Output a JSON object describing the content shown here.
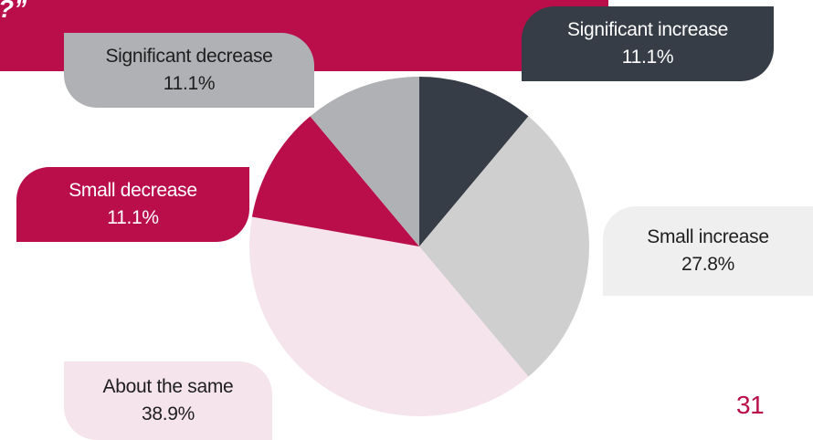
{
  "header": {
    "quote_fragment": "?”"
  },
  "chart_data": {
    "type": "pie",
    "start_angle_deg": 0,
    "direction": "clockwise",
    "slices": [
      {
        "label": "Significant increase",
        "value": 11.1,
        "value_label": "11.1%",
        "color": "#363d47",
        "label_color": "#ffffff"
      },
      {
        "label": "Small increase",
        "value": 27.8,
        "value_label": "27.8%",
        "color": "#cfcfcf",
        "label_color": "#1e1e1e"
      },
      {
        "label": "About the same",
        "value": 38.9,
        "value_label": "38.9%",
        "color": "#f6e4ec",
        "label_color": "#1e1e1e"
      },
      {
        "label": "Small decrease",
        "value": 11.1,
        "value_label": "11.1%",
        "color": "#b90e4a",
        "label_color": "#ffffff"
      },
      {
        "label": "Significant decrease",
        "value": 11.1,
        "value_label": "11.1%",
        "color": "#b0b1b5",
        "label_color": "#1e1e1e"
      }
    ]
  },
  "callout_colors": {
    "significant_increase": "#363d47",
    "small_increase": "#efefef",
    "about_the_same": "#f6e4ec",
    "small_decrease": "#b90e4a",
    "significant_decrease": "#b0b1b5"
  },
  "page_number": "31"
}
